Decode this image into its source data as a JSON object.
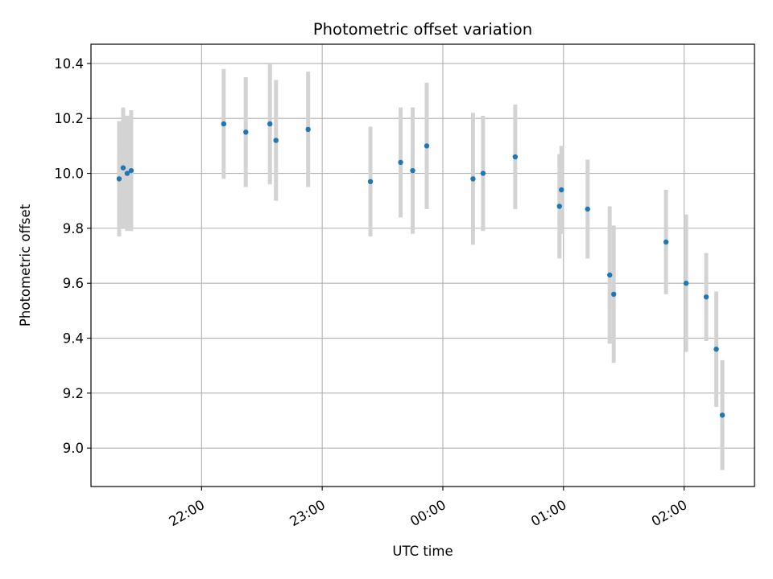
{
  "chart_data": {
    "type": "scatter",
    "title": "Photometric offset variation",
    "xlabel": "UTC time",
    "ylabel": "Photometric offset",
    "grid": true,
    "x_ticks": [
      "22:00",
      "23:00",
      "00:00",
      "01:00",
      "02:00"
    ],
    "y_ticks": [
      "9.0",
      "9.2",
      "9.4",
      "9.6",
      "9.8",
      "10.0",
      "10.2",
      "10.4"
    ],
    "xlim": [
      "21:05",
      "02:35"
    ],
    "ylim": [
      8.86,
      10.47
    ],
    "point_color": "#1f77b4",
    "errorbar_color": "#d3d3d3",
    "series": [
      {
        "points": [
          {
            "x": "21:19",
            "y": 9.98,
            "err": 0.21
          },
          {
            "x": "21:21",
            "y": 10.02,
            "err": 0.22
          },
          {
            "x": "21:23",
            "y": 10.0,
            "err": 0.21
          },
          {
            "x": "21:25",
            "y": 10.01,
            "err": 0.22
          },
          {
            "x": "22:11",
            "y": 10.18,
            "err": 0.2
          },
          {
            "x": "22:22",
            "y": 10.15,
            "err": 0.2
          },
          {
            "x": "22:34",
            "y": 10.18,
            "err": 0.22
          },
          {
            "x": "22:37",
            "y": 10.12,
            "err": 0.22
          },
          {
            "x": "22:53",
            "y": 10.16,
            "err": 0.21
          },
          {
            "x": "23:24",
            "y": 9.97,
            "err": 0.2
          },
          {
            "x": "23:39",
            "y": 10.04,
            "err": 0.2
          },
          {
            "x": "23:45",
            "y": 10.01,
            "err": 0.23
          },
          {
            "x": "23:52",
            "y": 10.1,
            "err": 0.23
          },
          {
            "x": "00:15",
            "y": 9.98,
            "err": 0.24
          },
          {
            "x": "00:20",
            "y": 10.0,
            "err": 0.21
          },
          {
            "x": "00:36",
            "y": 10.06,
            "err": 0.19
          },
          {
            "x": "00:58",
            "y": 9.88,
            "err": 0.19
          },
          {
            "x": "00:59",
            "y": 9.94,
            "err": 0.16
          },
          {
            "x": "01:12",
            "y": 9.87,
            "err": 0.18
          },
          {
            "x": "01:23",
            "y": 9.63,
            "err": 0.25
          },
          {
            "x": "01:25",
            "y": 9.56,
            "err": 0.25
          },
          {
            "x": "01:51",
            "y": 9.75,
            "err": 0.19
          },
          {
            "x": "02:01",
            "y": 9.6,
            "err": 0.25
          },
          {
            "x": "02:11",
            "y": 9.55,
            "err": 0.16
          },
          {
            "x": "02:16",
            "y": 9.36,
            "err": 0.21
          },
          {
            "x": "02:19",
            "y": 9.12,
            "err": 0.2
          }
        ]
      }
    ]
  }
}
